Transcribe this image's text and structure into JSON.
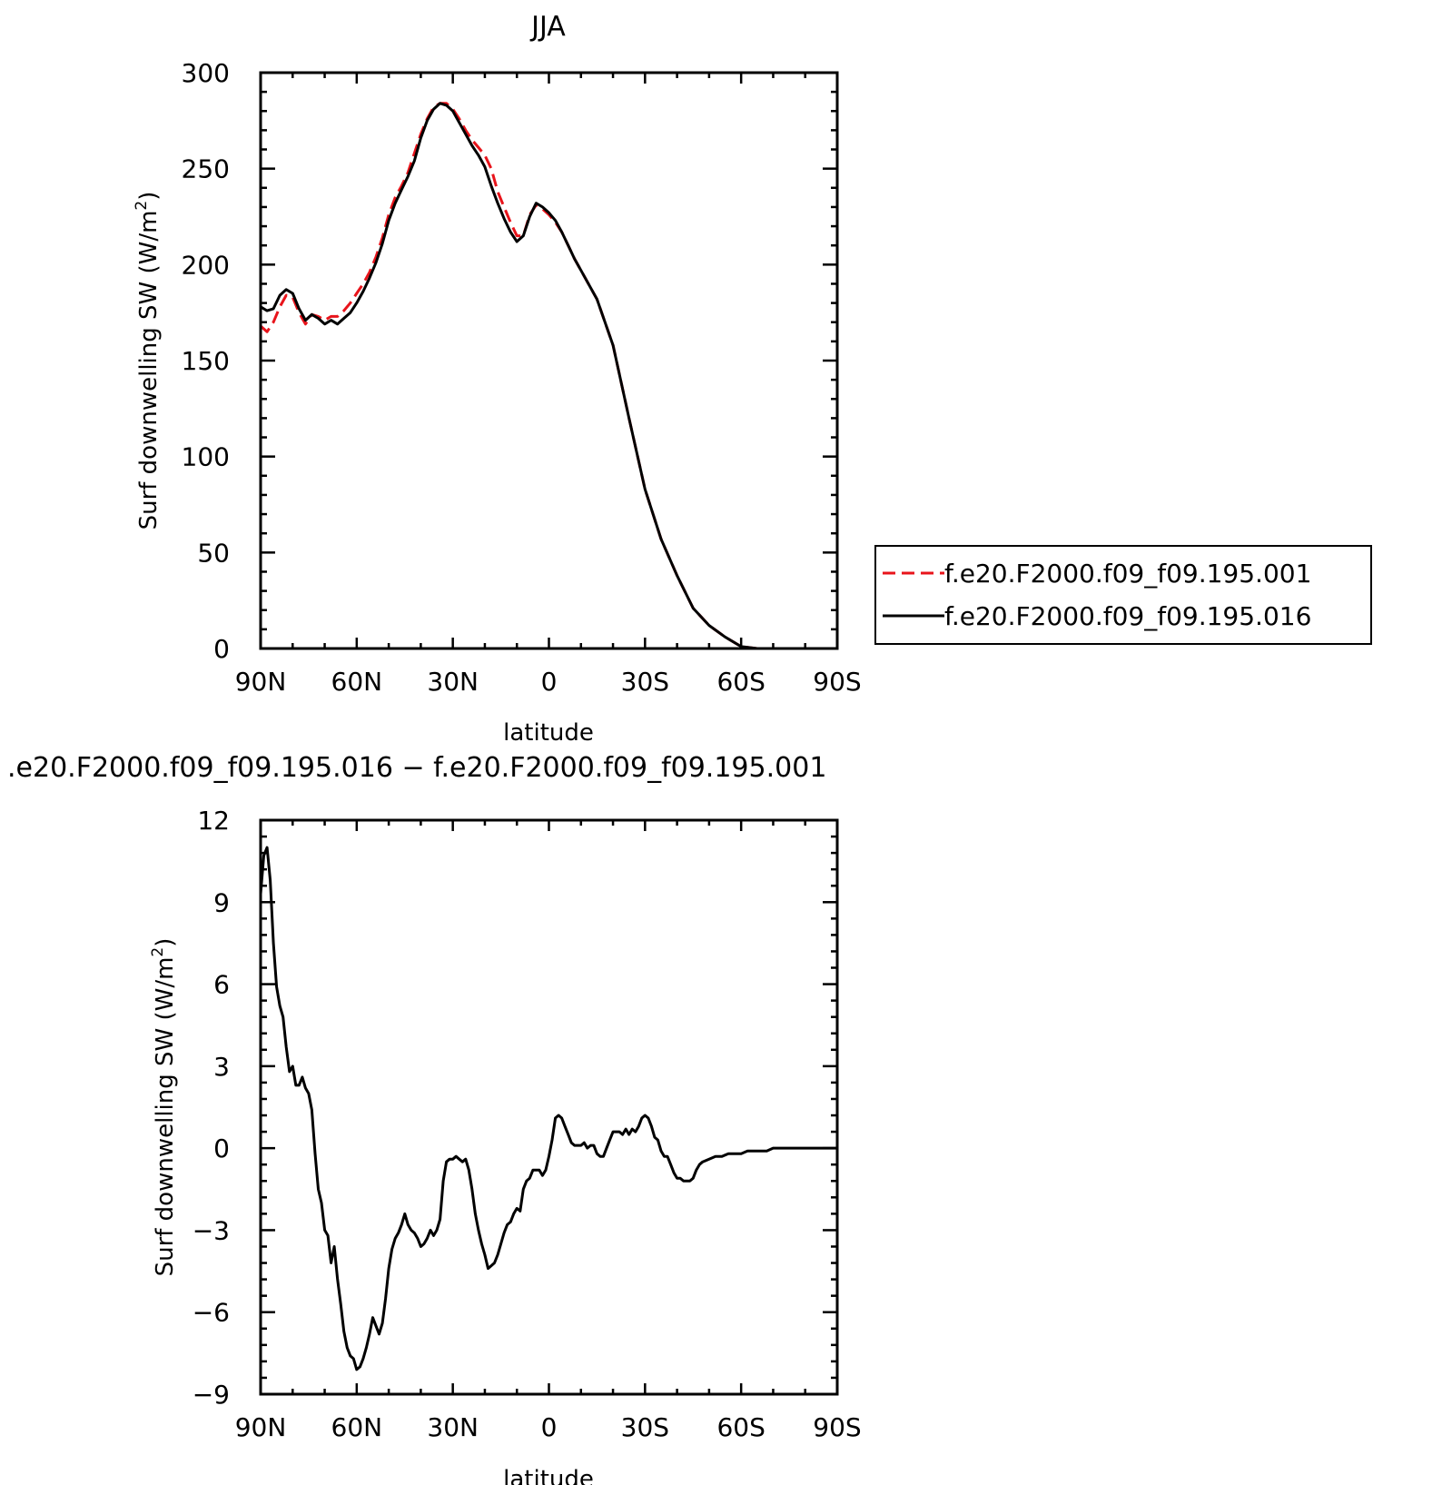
{
  "chart_data": [
    {
      "type": "line",
      "title": "JJA",
      "xlabel": "latitude",
      "ylabel": "Surf downwelling SW (W/m²)",
      "ylabel_main": "Surf downwelling SW (W/m",
      "ylabel_sup": "2",
      "ylabel_end": ")",
      "xlim": [
        90,
        -90
      ],
      "ylim": [
        0,
        300
      ],
      "xticks": [
        90,
        60,
        30,
        0,
        -30,
        -60,
        -90
      ],
      "xtick_labels": [
        "90N",
        "60N",
        "30N",
        "0",
        "30S",
        "60S",
        "90S"
      ],
      "yticks": [
        0,
        50,
        100,
        150,
        200,
        250,
        300
      ],
      "ytick_labels": [
        "0",
        "50",
        "100",
        "150",
        "200",
        "250",
        "300"
      ],
      "legend_position": "right",
      "series": [
        {
          "name": "f.e20.F2000.f09_f09.195.001",
          "color": "#e8141b",
          "dash": "dashed",
          "x": [
            90,
            88,
            86,
            84,
            82,
            80,
            78,
            76,
            74,
            72,
            70,
            68,
            66,
            64,
            62,
            60,
            58,
            56,
            54,
            52,
            50,
            48,
            46,
            44,
            42,
            40,
            38,
            36,
            34,
            32,
            30,
            28,
            26,
            24,
            22,
            20,
            18,
            16,
            14,
            12,
            10,
            8,
            6,
            4,
            2,
            0,
            -2,
            -4,
            -6,
            -8,
            -10,
            -15,
            -20,
            -25,
            -30,
            -35,
            -40,
            -45,
            -50,
            -55,
            -60,
            -65,
            -70,
            -75,
            -78,
            -80,
            -90
          ],
          "y": [
            168,
            165,
            170,
            178,
            184,
            183,
            175,
            169,
            174,
            173,
            171,
            173,
            173,
            176,
            180,
            185,
            190,
            196,
            204,
            214,
            226,
            235,
            241,
            248,
            258,
            268,
            276,
            282,
            284,
            284,
            281,
            276,
            270,
            265,
            261,
            257,
            250,
            238,
            230,
            222,
            215,
            215,
            226,
            231,
            229,
            226,
            222,
            217,
            210,
            203,
            197,
            182,
            158,
            120,
            83,
            57,
            38,
            21,
            12,
            6,
            1,
            0,
            0,
            0,
            0,
            0,
            0
          ]
        },
        {
          "name": "f.e20.F2000.f09_f09.195.016",
          "color": "#000000",
          "dash": "solid",
          "x": [
            90,
            88,
            86,
            84,
            82,
            80,
            78,
            76,
            74,
            72,
            70,
            68,
            66,
            64,
            62,
            60,
            58,
            56,
            54,
            52,
            50,
            48,
            46,
            44,
            42,
            40,
            38,
            36,
            34,
            32,
            30,
            28,
            26,
            24,
            22,
            20,
            18,
            16,
            14,
            12,
            10,
            8,
            6,
            4,
            2,
            0,
            -2,
            -4,
            -6,
            -8,
            -10,
            -15,
            -20,
            -25,
            -30,
            -35,
            -40,
            -45,
            -50,
            -55,
            -60,
            -65,
            -70,
            -75,
            -78,
            -80,
            -90
          ],
          "y": [
            178,
            176,
            177,
            184,
            187,
            185,
            177,
            171,
            174,
            172,
            169,
            171,
            169,
            172,
            175,
            180,
            186,
            193,
            201,
            211,
            223,
            232,
            239,
            246,
            254,
            266,
            275,
            281,
            284,
            283,
            280,
            274,
            268,
            262,
            257,
            251,
            241,
            232,
            224,
            217,
            212,
            215,
            225,
            232,
            230,
            227,
            223,
            217,
            210,
            203,
            197,
            182,
            158,
            120,
            83,
            57,
            38,
            21,
            12,
            6,
            1,
            0,
            0,
            0,
            0,
            0,
            0
          ]
        }
      ]
    },
    {
      "type": "line",
      "title": ".e20.F2000.f09_f09.195.016 − f.e20.F2000.f09_f09.195.001",
      "xlabel": "latitude",
      "ylabel": "Surf downwelling SW (W/m²)",
      "ylabel_main": "Surf downwelling SW (W/m",
      "ylabel_sup": "2",
      "ylabel_end": ")",
      "xlim": [
        90,
        -90
      ],
      "ylim": [
        -9,
        12
      ],
      "xticks": [
        90,
        60,
        30,
        0,
        -30,
        -60,
        -90
      ],
      "xtick_labels": [
        "90N",
        "60N",
        "30N",
        "0",
        "30S",
        "60S",
        "90S"
      ],
      "yticks": [
        -9,
        -6,
        -3,
        0,
        3,
        6,
        9,
        12
      ],
      "ytick_labels": [
        "−9",
        "−6",
        "−3",
        "0",
        "3",
        "6",
        "9",
        "12"
      ],
      "series": [
        {
          "color": "#000000",
          "dash": "solid",
          "x": [
            90,
            89,
            88,
            87,
            86,
            85,
            84,
            83,
            82,
            81,
            80,
            79,
            78,
            77,
            76,
            75,
            74,
            73,
            72,
            71,
            70,
            69,
            68,
            67,
            66,
            65,
            64,
            63,
            62,
            61,
            60,
            59,
            58,
            57,
            56,
            55,
            54,
            53,
            52,
            51,
            50,
            49,
            48,
            47,
            46,
            45,
            44,
            43,
            42,
            41,
            40,
            39,
            38,
            37,
            36,
            35,
            34,
            33,
            32,
            31,
            30,
            29,
            28,
            27,
            26,
            25,
            24,
            23,
            22,
            21,
            20,
            19,
            18,
            17,
            16,
            15,
            14,
            13,
            12,
            11,
            10,
            9,
            8,
            7,
            6,
            5,
            4,
            3,
            2,
            1,
            0,
            -1,
            -2,
            -3,
            -4,
            -5,
            -6,
            -7,
            -8,
            -9,
            -10,
            -11,
            -12,
            -13,
            -14,
            -15,
            -16,
            -17,
            -18,
            -19,
            -20,
            -21,
            -22,
            -23,
            -24,
            -25,
            -26,
            -27,
            -28,
            -29,
            -30,
            -31,
            -32,
            -33,
            -34,
            -35,
            -36,
            -37,
            -38,
            -39,
            -40,
            -41,
            -42,
            -43,
            -44,
            -45,
            -46,
            -47,
            -48,
            -50,
            -52,
            -54,
            -56,
            -58,
            -60,
            -62,
            -64,
            -66,
            -68,
            -70,
            -75,
            -80,
            -85,
            -90
          ],
          "y": [
            9.3,
            10.7,
            11.0,
            9.8,
            7.5,
            5.9,
            5.2,
            4.8,
            3.7,
            2.8,
            3.0,
            2.3,
            2.3,
            2.6,
            2.2,
            2.0,
            1.4,
            -0.2,
            -1.5,
            -2.0,
            -3.0,
            -3.2,
            -4.2,
            -3.6,
            -4.8,
            -5.7,
            -6.7,
            -7.3,
            -7.6,
            -7.7,
            -8.1,
            -8.0,
            -7.7,
            -7.3,
            -6.8,
            -6.2,
            -6.5,
            -6.8,
            -6.4,
            -5.5,
            -4.4,
            -3.7,
            -3.3,
            -3.1,
            -2.8,
            -2.4,
            -2.8,
            -3.0,
            -3.1,
            -3.3,
            -3.6,
            -3.5,
            -3.3,
            -3.0,
            -3.2,
            -3.0,
            -2.6,
            -1.2,
            -0.5,
            -0.4,
            -0.4,
            -0.3,
            -0.4,
            -0.5,
            -0.4,
            -0.8,
            -1.5,
            -2.4,
            -3.0,
            -3.5,
            -3.9,
            -4.4,
            -4.3,
            -4.2,
            -3.9,
            -3.5,
            -3.1,
            -2.8,
            -2.7,
            -2.4,
            -2.2,
            -2.3,
            -1.5,
            -1.2,
            -1.1,
            -0.8,
            -0.8,
            -0.8,
            -1.0,
            -0.8,
            -0.3,
            0.3,
            1.1,
            1.2,
            1.1,
            0.8,
            0.5,
            0.2,
            0.1,
            0.1,
            0.1,
            0.2,
            0.0,
            0.1,
            0.1,
            -0.2,
            -0.3,
            -0.3,
            0.0,
            0.3,
            0.6,
            0.6,
            0.6,
            0.5,
            0.7,
            0.5,
            0.7,
            0.6,
            0.8,
            1.1,
            1.2,
            1.1,
            0.8,
            0.4,
            0.3,
            -0.1,
            -0.3,
            -0.3,
            -0.6,
            -0.9,
            -1.1,
            -1.1,
            -1.2,
            -1.2,
            -1.2,
            -1.1,
            -0.8,
            -0.6,
            -0.5,
            -0.4,
            -0.3,
            -0.3,
            -0.2,
            -0.2,
            -0.2,
            -0.1,
            -0.1,
            -0.1,
            -0.1,
            0.0,
            0.0,
            0.0,
            0.0,
            0.0
          ]
        }
      ]
    }
  ]
}
